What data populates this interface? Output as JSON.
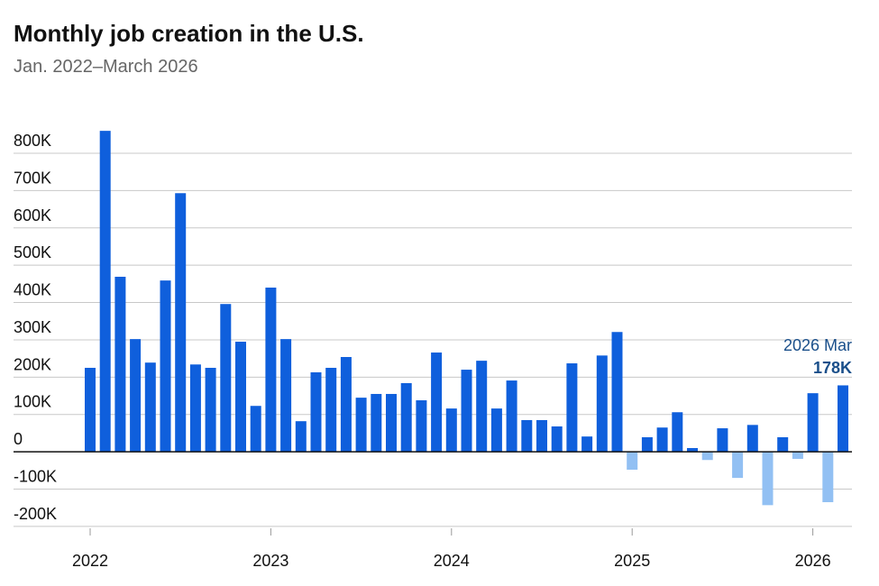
{
  "chart_data": {
    "type": "bar",
    "title": "Monthly job creation in the U.S.",
    "subtitle": "Jan. 2022–March 2026",
    "values": [
      225000,
      860000,
      469000,
      302000,
      239000,
      459000,
      693000,
      234000,
      225000,
      396000,
      295000,
      123000,
      440000,
      302000,
      82000,
      213000,
      225000,
      254000,
      145000,
      155000,
      155000,
      184000,
      138000,
      266000,
      116000,
      220000,
      244000,
      116000,
      191000,
      85000,
      85000,
      68000,
      237000,
      41000,
      258000,
      321000,
      -48000,
      39000,
      65000,
      106000,
      10000,
      -22000,
      63000,
      -70000,
      72000,
      -143000,
      39000,
      -19000,
      157000,
      -135000,
      178000
    ],
    "value_labels": [
      null,
      null,
      null,
      null,
      null,
      null,
      null,
      null,
      null,
      null,
      null,
      null,
      null,
      null,
      null,
      null,
      null,
      null,
      null,
      null,
      null,
      null,
      null,
      null,
      null,
      null,
      null,
      null,
      null,
      null,
      null,
      null,
      null,
      null,
      null,
      null,
      null,
      null,
      null,
      null,
      null,
      null,
      null,
      null,
      null,
      null,
      null,
      null,
      null,
      null,
      "178K"
    ],
    "annotation": "2026 Mar",
    "color": "#0f5fdc",
    "negative_color": "#92c0f3",
    "ylim": [
      -205000,
      870000
    ],
    "yticks": [
      {
        "value": -200000,
        "label": "-200K"
      },
      {
        "value": -100000,
        "label": "-100K"
      },
      {
        "value": 0,
        "label": "0"
      },
      {
        "value": 100000,
        "label": "100K"
      },
      {
        "value": 200000,
        "label": "200K"
      },
      {
        "value": 300000,
        "label": "300K"
      },
      {
        "value": 400000,
        "label": "400K"
      },
      {
        "value": 500000,
        "label": "500K"
      },
      {
        "value": 600000,
        "label": "600K"
      },
      {
        "value": 700000,
        "label": "700K"
      },
      {
        "value": 800000,
        "label": "800K"
      }
    ],
    "xticks": [
      {
        "value": 0,
        "label": "2022"
      },
      {
        "value": 12,
        "label": "2023"
      },
      {
        "value": 24,
        "label": "2024"
      },
      {
        "value": 36,
        "label": "2025"
      },
      {
        "value": 48,
        "label": "2026"
      }
    ],
    "grid": true
  }
}
